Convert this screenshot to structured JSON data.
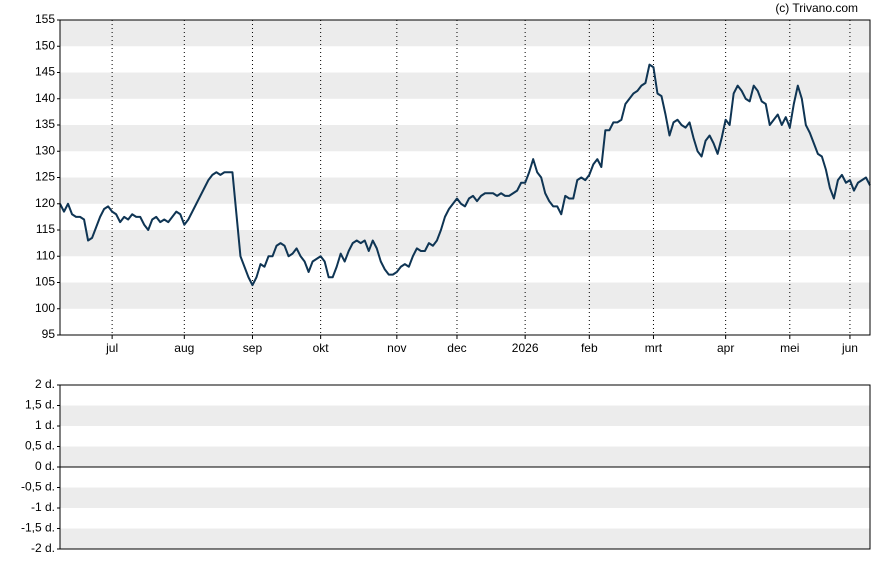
{
  "chart_data": [
    {
      "type": "line",
      "source": "(c) Trivano.com",
      "categories": [
        null,
        null,
        null,
        null,
        null,
        null,
        null,
        null,
        null,
        null,
        null,
        null,
        null,
        "jul",
        null,
        null,
        null,
        null,
        null,
        null,
        null,
        null,
        null,
        null,
        null,
        null,
        null,
        null,
        null,
        null,
        null,
        "aug",
        null,
        null,
        null,
        null,
        null,
        null,
        null,
        null,
        null,
        null,
        null,
        null,
        null,
        null,
        null,
        null,
        "sep",
        null,
        null,
        null,
        null,
        null,
        null,
        null,
        null,
        null,
        null,
        null,
        null,
        null,
        null,
        null,
        null,
        "okt",
        null,
        null,
        null,
        null,
        null,
        null,
        null,
        null,
        null,
        null,
        null,
        null,
        null,
        null,
        null,
        null,
        null,
        null,
        "nov",
        null,
        null,
        null,
        null,
        null,
        null,
        null,
        null,
        null,
        null,
        null,
        null,
        null,
        null,
        "dec",
        null,
        null,
        null,
        null,
        null,
        null,
        null,
        null,
        null,
        null,
        null,
        null,
        null,
        null,
        null,
        null,
        "2026",
        null,
        null,
        null,
        null,
        null,
        null,
        null,
        null,
        null,
        null,
        null,
        null,
        null,
        null,
        null,
        "feb",
        null,
        null,
        null,
        null,
        null,
        null,
        null,
        null,
        null,
        null,
        null,
        null,
        null,
        null,
        null,
        "mrt",
        null,
        null,
        null,
        null,
        null,
        null,
        null,
        null,
        null,
        null,
        null,
        null,
        null,
        null,
        null,
        null,
        null,
        "apr",
        null,
        null,
        null,
        null,
        null,
        null,
        null,
        null,
        null,
        null,
        null,
        null,
        null,
        null,
        null,
        "mei",
        null,
        null,
        null,
        null,
        null,
        null,
        null,
        null,
        null,
        null,
        null,
        null,
        null,
        null,
        "jun",
        null,
        null,
        null,
        null,
        null
      ],
      "series": [
        {
          "color": "#0f3554",
          "values": [
            120,
            118.5,
            120,
            118,
            117.5,
            117.5,
            117,
            113,
            113.5,
            115.5,
            117.5,
            119,
            119.5,
            118.5,
            118,
            116.5,
            117.5,
            117,
            118,
            117.5,
            117.5,
            116,
            115,
            117,
            117.5,
            116.5,
            117,
            116.5,
            117.5,
            118.5,
            118,
            116,
            117,
            118.5,
            120,
            121.5,
            123,
            124.5,
            125.5,
            126,
            125.5,
            126,
            126,
            126,
            118,
            110,
            108,
            106,
            104.5,
            106,
            108.5,
            108,
            110,
            110,
            112,
            112.5,
            112,
            110,
            110.5,
            111.5,
            110,
            109,
            107,
            109,
            109.5,
            110,
            109,
            106,
            106,
            108,
            110.5,
            109,
            111,
            112.5,
            113,
            112.5,
            113,
            111,
            113,
            111.5,
            109,
            107.5,
            106.5,
            106.5,
            107,
            108,
            108.5,
            108,
            110,
            111.5,
            111,
            111,
            112.5,
            112,
            113,
            115,
            117.5,
            119,
            120,
            121,
            120,
            119.5,
            121,
            121.5,
            120.5,
            121.5,
            122,
            122,
            122,
            121.5,
            122,
            121.5,
            121.5,
            122,
            122.5,
            124,
            124,
            126,
            128.5,
            126,
            125,
            122,
            120.5,
            119.5,
            119.5,
            118,
            121.5,
            121,
            121,
            124.5,
            125,
            124.5,
            125.5,
            127.5,
            128.5,
            127,
            134,
            134,
            135.5,
            135.5,
            136,
            139,
            140,
            141,
            141.5,
            142.5,
            143,
            146.5,
            146,
            141,
            140.5,
            137,
            133,
            135.5,
            136,
            135,
            134.5,
            135.5,
            132.5,
            130,
            129,
            132,
            133,
            131.5,
            129.5,
            132.5,
            136,
            135,
            141,
            142.5,
            141.5,
            140,
            139.5,
            142.5,
            141.5,
            139.5,
            139,
            135,
            136,
            137,
            135,
            136.5,
            134.5,
            139,
            142.5,
            140,
            135,
            133.5,
            131.5,
            129.5,
            129,
            126.5,
            123,
            121,
            124.5,
            125.5,
            124,
            124.5,
            122.5,
            124,
            124.5,
            125,
            123.5
          ]
        }
      ],
      "ylim": [
        95,
        155
      ],
      "yticks": [
        95,
        100,
        105,
        110,
        115,
        120,
        125,
        130,
        135,
        140,
        145,
        150,
        155
      ],
      "grid": true
    },
    {
      "type": "line",
      "ylim": [
        -2,
        2
      ],
      "yticks": [
        {
          "value": -2,
          "label": "-2 d."
        },
        {
          "value": -1.5,
          "label": "-1,5 d."
        },
        {
          "value": -1,
          "label": "-1 d."
        },
        {
          "value": -0.5,
          "label": "-0,5 d."
        },
        {
          "value": 0,
          "label": "0 d."
        },
        {
          "value": 0.5,
          "label": "0,5 d."
        },
        {
          "value": 1,
          "label": "1 d."
        },
        {
          "value": 1.5,
          "label": "1,5 d."
        },
        {
          "value": 2,
          "label": "2 d."
        }
      ],
      "grid": true
    }
  ]
}
